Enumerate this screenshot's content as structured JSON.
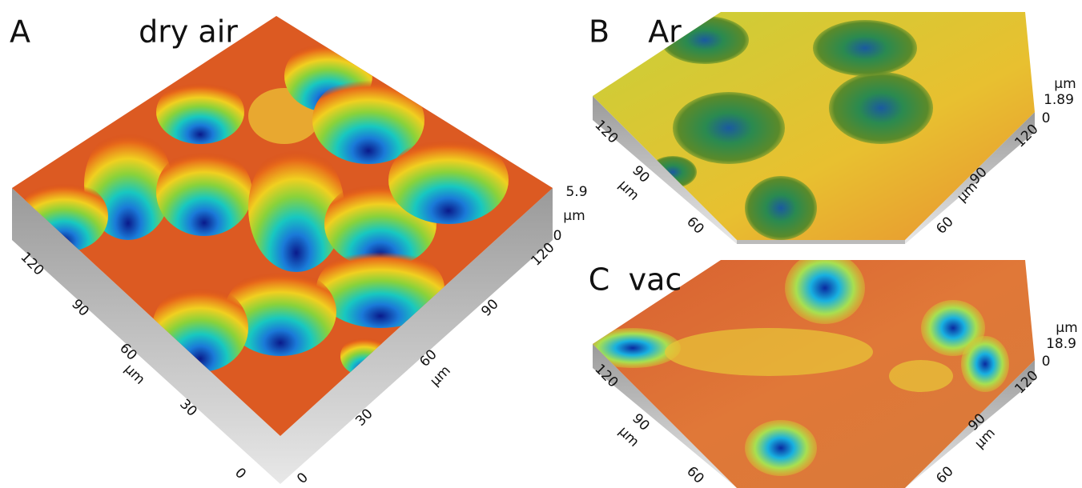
{
  "panels": [
    {
      "letter": "A",
      "label": "dry air",
      "left_axis": [
        "120",
        "90",
        "60",
        "µm",
        "30",
        "0"
      ],
      "right_axis": [
        "0",
        "30",
        "60",
        "µm",
        "90",
        "120"
      ],
      "z_axis": [
        "5.9",
        "µm",
        "0"
      ]
    },
    {
      "letter": "B",
      "label": "Ar",
      "left_axis": [
        "120",
        "90",
        "µm",
        "60"
      ],
      "right_axis": [
        "60",
        "µm",
        "90",
        "120"
      ],
      "z_axis": [
        "µm",
        "1.89",
        "0"
      ]
    },
    {
      "letter": "C",
      "label": "vac",
      "left_axis": [
        "120",
        "90",
        "µm",
        "60"
      ],
      "right_axis": [
        "60",
        "90",
        "µm",
        "120"
      ],
      "z_axis": [
        "µm",
        "18.9",
        "0"
      ]
    }
  ]
}
